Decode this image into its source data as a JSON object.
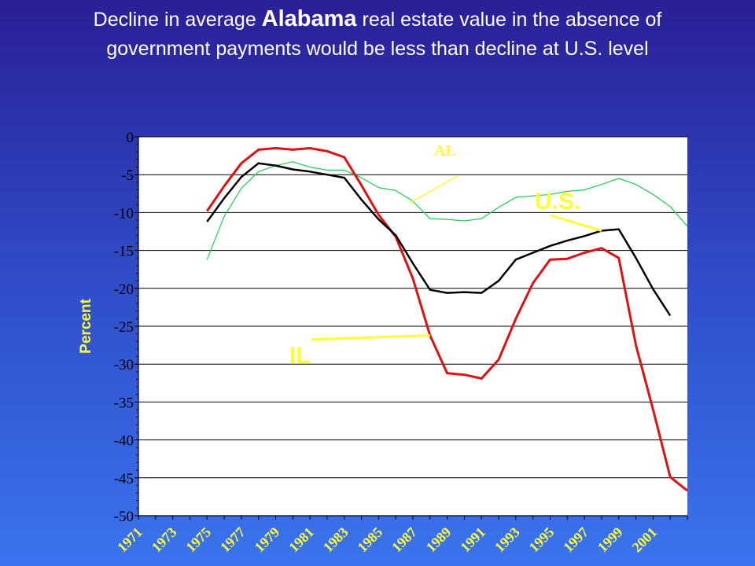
{
  "slide": {
    "title_pre": "Decline in average ",
    "title_highlight": "Alabama",
    "title_post": " real estate value in the absence of government payments would be less than decline at U.S. level"
  },
  "chart_data": {
    "type": "line",
    "title": "Decline in average Alabama real estate value in the absence of government payments would be less than decline at U.S. level",
    "ylabel": "Percent",
    "xlabel": "",
    "ylim": [
      -50,
      0
    ],
    "yticks": [
      0,
      -5,
      -10,
      -15,
      -20,
      -25,
      -30,
      -35,
      -40,
      -45,
      -50
    ],
    "xlim": [
      1971,
      2003
    ],
    "xtick_labels": [
      "1971",
      "1973",
      "1975",
      "1977",
      "1979",
      "1981",
      "1983",
      "1985",
      "1987",
      "1989",
      "1991",
      "1993",
      "1995",
      "1997",
      "1999",
      "2001"
    ],
    "grid": "horizontal",
    "colors": {
      "AL": "#22cc55",
      "IL": "#dd1111",
      "U.S.": "#000000",
      "annotation": "#ffff33",
      "plot_bg": "#ffffff"
    },
    "series": [
      {
        "name": "AL",
        "x": [
          1975,
          1976,
          1977,
          1978,
          1979,
          1980,
          1981,
          1982,
          1983,
          1984,
          1985,
          1986,
          1987,
          1988,
          1989,
          1990,
          1991,
          1992,
          1993,
          1994,
          1995,
          1996,
          1997,
          1998,
          1999,
          2000,
          2001,
          2002,
          2003
        ],
        "y": [
          -16.2,
          -10.5,
          -6.8,
          -4.6,
          -3.8,
          -3.3,
          -4.0,
          -4.4,
          -4.4,
          -5.4,
          -6.7,
          -7.1,
          -8.5,
          -10.8,
          -10.9,
          -11.1,
          -10.8,
          -9.3,
          -8.0,
          -7.8,
          -7.6,
          -7.2,
          -7.0,
          -6.3,
          -5.5,
          -6.3,
          -7.6,
          -9.2,
          -11.8
        ]
      },
      {
        "name": "IL",
        "x": [
          1975,
          1976,
          1977,
          1978,
          1979,
          1980,
          1981,
          1982,
          1983,
          1984,
          1985,
          1986,
          1987,
          1988,
          1989,
          1990,
          1991,
          1992,
          1993,
          1994,
          1995,
          1996,
          1997,
          1998,
          1999,
          2000,
          2001,
          2002,
          2003
        ],
        "y": [
          -9.8,
          -6.5,
          -3.5,
          -1.7,
          -1.5,
          -1.7,
          -1.5,
          -1.9,
          -2.7,
          -6.4,
          -10.3,
          -13.2,
          -18.7,
          -26.2,
          -31.2,
          -31.4,
          -31.9,
          -29.4,
          -24.0,
          -19.3,
          -16.2,
          -16.1,
          -15.3,
          -14.7,
          -16.0,
          -27.5,
          -36.0,
          -44.9,
          -46.7
        ]
      },
      {
        "name": "U.S.",
        "x": [
          1975,
          1976,
          1977,
          1978,
          1979,
          1980,
          1981,
          1982,
          1983,
          1984,
          1985,
          1986,
          1987,
          1988,
          1989,
          1990,
          1991,
          1992,
          1993,
          1994,
          1995,
          1996,
          1997,
          1998,
          1999,
          2000,
          2001,
          2002
        ],
        "y": [
          -11.2,
          -8.1,
          -5.3,
          -3.5,
          -3.8,
          -4.3,
          -4.6,
          -5.0,
          -5.4,
          -8.3,
          -10.9,
          -13.0,
          -16.7,
          -20.2,
          -20.6,
          -20.5,
          -20.6,
          -19.0,
          -16.2,
          -15.3,
          -14.4,
          -13.7,
          -13.1,
          -12.4,
          -12.2,
          -16.0,
          -20.1,
          -23.6
        ]
      }
    ],
    "annotations": [
      {
        "label": "AL",
        "target_series": "AL",
        "target_x": 1987
      },
      {
        "label": "U.S.",
        "target_series": "U.S.",
        "target_x": 1998
      },
      {
        "label": "IL",
        "target_series": "IL",
        "target_x": 1988
      }
    ]
  }
}
